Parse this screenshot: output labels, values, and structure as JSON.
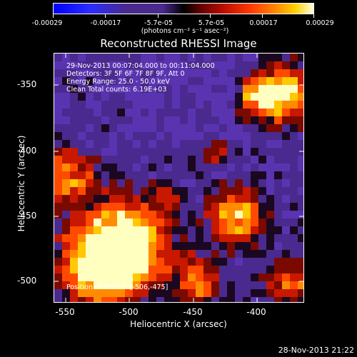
{
  "colorbar": {
    "ticks": [
      "-0.00029",
      "-0.00017",
      "-5.7e-05",
      "5.7e-05",
      "0.00017",
      "0.00029"
    ],
    "units": "(photons cm⁻² s⁻¹ asec⁻²)"
  },
  "title": "Reconstructed RHESSI Image",
  "info": {
    "time_range": "29-Nov-2013 00:07:04.000 to 00:11:04.000",
    "detectors": "Detectors: 3F 5F 6F 7F 8F 9F, Att 0",
    "energy": "Energy Range: 25.0 - 50.0 keV",
    "clean": "Clean    Total counts: 6.19E+03",
    "peak": "Position of Peak = [-506,-475]"
  },
  "axes": {
    "xlabel": "Heliocentric X (arcsec)",
    "ylabel": "Heliocentric Y (arcsec)",
    "x_ticks": [
      "-550",
      "-500",
      "-450",
      "-400"
    ],
    "y_ticks": [
      "-350",
      "-400",
      "-450",
      "-500"
    ]
  },
  "timestamp": "28-Nov-2013 21:22",
  "colors": {
    "background": "#000000",
    "map_low": "#4a2a8e",
    "map_high": "#ffffe0"
  }
}
